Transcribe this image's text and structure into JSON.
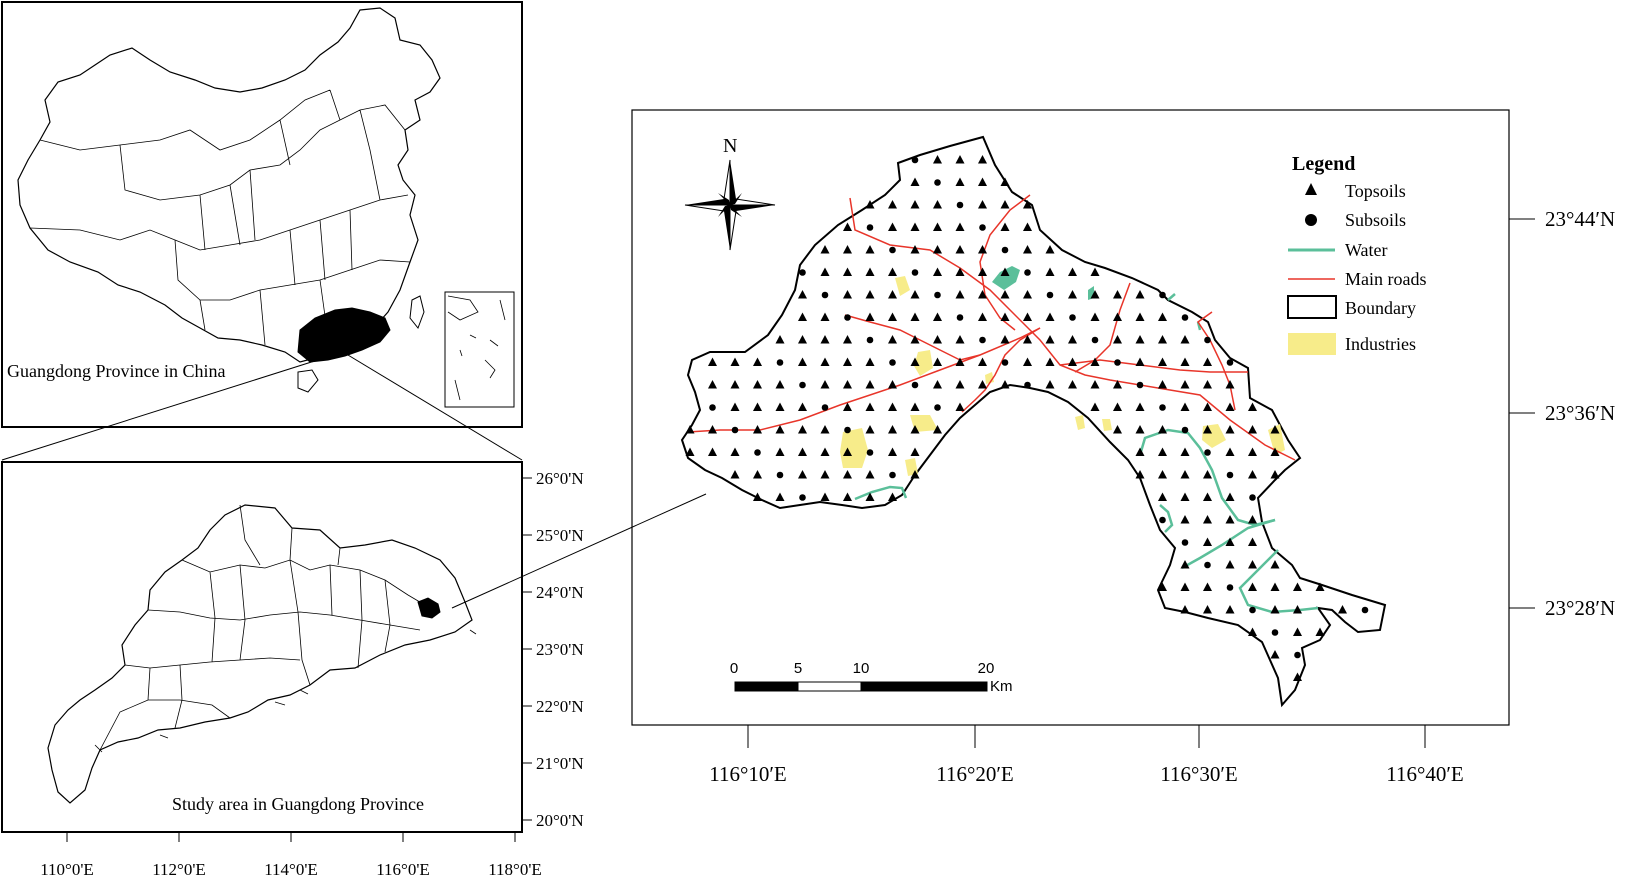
{
  "china_panel": {
    "label": "Guangdong Province in China"
  },
  "guangdong_panel": {
    "label": "Study area in Guangdong Province",
    "lat_ticks": [
      "26°0'N",
      "25°0'N",
      "24°0'N",
      "23°0'N",
      "22°0'N",
      "21°0'N",
      "20°0'N"
    ],
    "lon_ticks": [
      "110°0'E",
      "112°0'E",
      "114°0'E",
      "116°0'E",
      "118°0'E"
    ]
  },
  "study_panel": {
    "north_label": "N",
    "legend": {
      "title": "Legend",
      "items": [
        {
          "label": "Topsoils",
          "symbol": "triangle"
        },
        {
          "label": "Subsoils",
          "symbol": "circle"
        },
        {
          "label": "Water",
          "symbol": "line",
          "color": "#5bbf9a"
        },
        {
          "label": "Main roads",
          "symbol": "line",
          "color": "#e8352a"
        },
        {
          "label": "Boundary",
          "symbol": "box"
        },
        {
          "label": "Industries",
          "symbol": "fill",
          "color": "#f7ec8a"
        }
      ]
    },
    "scale_bar": {
      "ticks": [
        "0",
        "5",
        "10",
        "20"
      ],
      "unit": "Km"
    },
    "lat_ticks": [
      "23°44′N",
      "23°36′N",
      "23°28′N"
    ],
    "lon_ticks": [
      "116°10′E",
      "116°20′E",
      "116°30′E",
      "116°40′E"
    ]
  },
  "colors": {
    "water": "#5bbf9a",
    "roads": "#e8352a",
    "industries": "#f7ec8a",
    "highlight": "#000000"
  }
}
